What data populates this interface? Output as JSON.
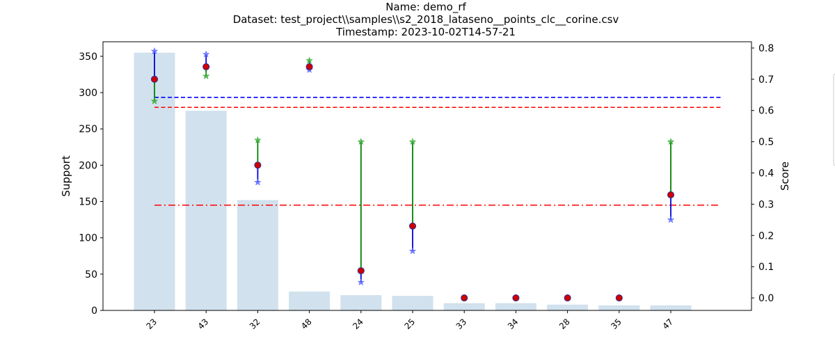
{
  "chart_data": {
    "type": "bar",
    "title": [
      "Name: demo_rf",
      "Dataset: test_project\\\\samples\\\\s2_2018_lataseno__points_clc__corine.csv",
      "Timestamp: 2023-10-02T14-57-21"
    ],
    "categories": [
      "23",
      "43",
      "32",
      "48",
      "24",
      "25",
      "33",
      "34",
      "28",
      "35",
      "47"
    ],
    "support": [
      355,
      275,
      152,
      26,
      21,
      20,
      10,
      10,
      8,
      7,
      7
    ],
    "ylabel_left": "Support",
    "ylabel_right": "Score",
    "ylim_left": [
      0,
      370
    ],
    "ylim_right": [
      -0.04,
      0.82
    ],
    "yticks_left": [
      0,
      50,
      100,
      150,
      200,
      250,
      300,
      350
    ],
    "yticks_right": [
      0.0,
      0.1,
      0.2,
      0.3,
      0.4,
      0.5,
      0.6,
      0.7,
      0.8
    ],
    "f1": [
      0.7,
      0.74,
      0.425,
      0.74,
      0.087,
      0.23,
      0.0,
      0.0,
      0.0,
      0.0,
      0.33
    ],
    "precision": [
      0.79,
      0.78,
      0.37,
      0.73,
      0.05,
      0.15,
      0.0,
      0.0,
      0.0,
      0.0,
      0.25
    ],
    "recall": [
      0.63,
      0.71,
      0.505,
      0.76,
      0.5,
      0.5,
      0.0,
      0.0,
      0.0,
      0.0,
      0.5
    ],
    "reference_lines": [
      {
        "value": 0.642,
        "style": "dashed",
        "color": "#0000ff"
      },
      {
        "value": 0.61,
        "style": "dashed",
        "color": "#ff0000"
      },
      {
        "value": 0.297,
        "style": "dashdot",
        "color": "#ff0000"
      }
    ],
    "colors": {
      "bar": "#d1e1ee",
      "f1_marker": "#cc0000",
      "f1_marker_edge": "#2233aa",
      "precision": "#0000dd",
      "recall": "#008000",
      "precision_star": "#5566ff",
      "recall_star": "#33aa33"
    },
    "grid": false,
    "legend": "right (clipped)"
  }
}
